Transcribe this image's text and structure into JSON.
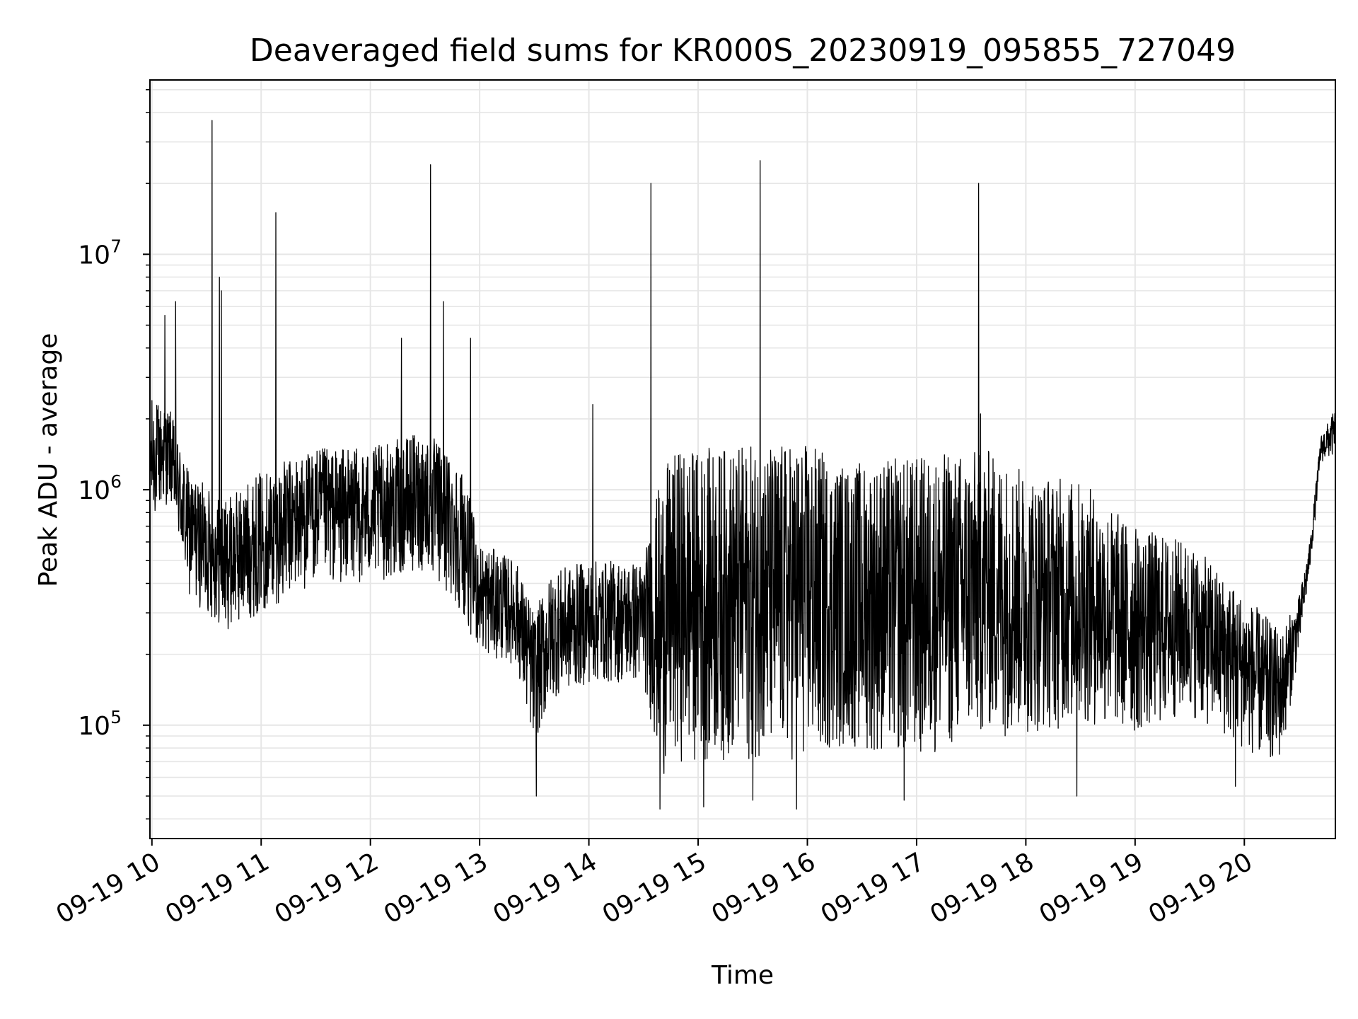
{
  "chart_data": {
    "type": "line",
    "title": "Deaveraged field sums for KR000S_20230919_095855_727049",
    "xlabel": "Time",
    "ylabel": "Peak ADU - average",
    "yscale": "log",
    "ylim": [
      33000,
      55000000
    ],
    "xlim": [
      "2023-09-19 09:58:55",
      "2023-09-19 20:50:00"
    ],
    "x_ticks": [
      {
        "time": "2023-09-19 10:00",
        "label": "09-19 10"
      },
      {
        "time": "2023-09-19 11:00",
        "label": "09-19 11"
      },
      {
        "time": "2023-09-19 12:00",
        "label": "09-19 12"
      },
      {
        "time": "2023-09-19 13:00",
        "label": "09-19 13"
      },
      {
        "time": "2023-09-19 14:00",
        "label": "09-19 14"
      },
      {
        "time": "2023-09-19 15:00",
        "label": "09-19 15"
      },
      {
        "time": "2023-09-19 16:00",
        "label": "09-19 16"
      },
      {
        "time": "2023-09-19 17:00",
        "label": "09-19 17"
      },
      {
        "time": "2023-09-19 18:00",
        "label": "09-19 18"
      },
      {
        "time": "2023-09-19 19:00",
        "label": "09-19 19"
      },
      {
        "time": "2023-09-19 20:00",
        "label": "09-19 20"
      }
    ],
    "y_ticks": [
      {
        "value": 100000,
        "base": "10",
        "exp": "5"
      },
      {
        "value": 1000000,
        "base": "10",
        "exp": "6"
      },
      {
        "value": 10000000,
        "base": "10",
        "exp": "7"
      }
    ],
    "grid": {
      "major": true,
      "minor": true,
      "color": "#e6e6e6"
    },
    "line_color": "#000000",
    "envelope": [
      {
        "t": "09:58",
        "low": 700000,
        "high": 2500000
      },
      {
        "t": "10:10",
        "low": 900000,
        "high": 2200000
      },
      {
        "t": "10:20",
        "low": 350000,
        "high": 1200000
      },
      {
        "t": "10:40",
        "low": 250000,
        "high": 900000
      },
      {
        "t": "11:00",
        "low": 300000,
        "high": 1200000
      },
      {
        "t": "11:30",
        "low": 400000,
        "high": 1500000
      },
      {
        "t": "12:00",
        "low": 400000,
        "high": 1500000
      },
      {
        "t": "12:30",
        "low": 450000,
        "high": 1800000
      },
      {
        "t": "12:50",
        "low": 300000,
        "high": 1300000
      },
      {
        "t": "13:00",
        "low": 200000,
        "high": 600000
      },
      {
        "t": "13:20",
        "low": 180000,
        "high": 500000
      },
      {
        "t": "13:30",
        "low": 80000,
        "high": 300000
      },
      {
        "t": "13:40",
        "low": 130000,
        "high": 450000
      },
      {
        "t": "14:00",
        "low": 150000,
        "high": 500000
      },
      {
        "t": "14:30",
        "low": 150000,
        "high": 500000
      },
      {
        "t": "14:40",
        "low": 60000,
        "high": 1200000
      },
      {
        "t": "14:50",
        "low": 70000,
        "high": 1500000
      },
      {
        "t": "15:00",
        "low": 70000,
        "high": 1500000
      },
      {
        "t": "16:00",
        "low": 70000,
        "high": 1600000
      },
      {
        "t": "16:20",
        "low": 80000,
        "high": 1300000
      },
      {
        "t": "17:00",
        "low": 70000,
        "high": 1400000
      },
      {
        "t": "17:40",
        "low": 90000,
        "high": 1500000
      },
      {
        "t": "18:00",
        "low": 90000,
        "high": 1200000
      },
      {
        "t": "18:30",
        "low": 100000,
        "high": 1100000
      },
      {
        "t": "19:00",
        "low": 90000,
        "high": 700000
      },
      {
        "t": "19:30",
        "low": 110000,
        "high": 600000
      },
      {
        "t": "20:10",
        "low": 70000,
        "high": 300000
      },
      {
        "t": "20:20",
        "low": 70000,
        "high": 250000
      },
      {
        "t": "20:30",
        "low": 200000,
        "high": 350000
      },
      {
        "t": "20:36",
        "low": 450000,
        "high": 600000
      },
      {
        "t": "20:42",
        "low": 1300000,
        "high": 1700000
      },
      {
        "t": "20:50",
        "low": 1400000,
        "high": 2200000
      }
    ],
    "spikes": [
      {
        "t": "10:07",
        "value": 5500000
      },
      {
        "t": "10:13",
        "value": 6300000
      },
      {
        "t": "10:33",
        "value": 37000000
      },
      {
        "t": "10:37",
        "value": 8000000
      },
      {
        "t": "10:38",
        "value": 7000000
      },
      {
        "t": "11:08",
        "value": 15000000
      },
      {
        "t": "12:17",
        "value": 4400000
      },
      {
        "t": "12:33",
        "value": 24000000
      },
      {
        "t": "12:40",
        "value": 6300000
      },
      {
        "t": "12:55",
        "value": 4400000
      },
      {
        "t": "14:34",
        "value": 20000000
      },
      {
        "t": "15:34",
        "value": 25000000
      },
      {
        "t": "17:34",
        "value": 20000000
      },
      {
        "t": "14:02",
        "value": 2300000
      },
      {
        "t": "17:35",
        "value": 2100000
      }
    ],
    "dips": [
      {
        "t": "13:31",
        "value": 50000
      },
      {
        "t": "14:39",
        "value": 44000
      },
      {
        "t": "15:03",
        "value": 45000
      },
      {
        "t": "15:30",
        "value": 48000
      },
      {
        "t": "15:54",
        "value": 44000
      },
      {
        "t": "16:53",
        "value": 48000
      },
      {
        "t": "18:28",
        "value": 50000
      },
      {
        "t": "19:55",
        "value": 55000
      }
    ]
  }
}
